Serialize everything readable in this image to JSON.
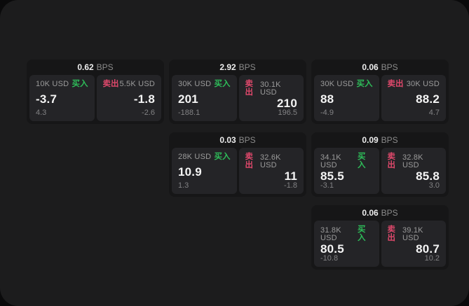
{
  "colors": {
    "buy": "#2ebd59",
    "sell": "#de486b",
    "panel_bg": "#1c1c1d",
    "card_bg": "#161617",
    "cell_bg": "#242427"
  },
  "labels": {
    "bps_unit": "BPS",
    "buy": "买入",
    "sell": "卖出"
  },
  "cards": [
    {
      "col": 1,
      "row": 1,
      "bps": "0.62",
      "buy": {
        "size": "10K USD",
        "value": "-3.7",
        "delta": "4.3"
      },
      "sell": {
        "size": "5.5K USD",
        "value": "-1.8",
        "delta": "-2.6"
      }
    },
    {
      "col": 2,
      "row": 1,
      "bps": "2.92",
      "buy": {
        "size": "30K USD",
        "value": "201",
        "delta": "-188.1"
      },
      "sell": {
        "size": "30.1K USD",
        "value": "210",
        "delta": "196.5"
      }
    },
    {
      "col": 3,
      "row": 1,
      "bps": "0.06",
      "buy": {
        "size": "30K USD",
        "value": "88",
        "delta": "-4.9"
      },
      "sell": {
        "size": "30K USD",
        "value": "88.2",
        "delta": "4.7"
      }
    },
    {
      "col": 2,
      "row": 2,
      "bps": "0.03",
      "buy": {
        "size": "28K USD",
        "value": "10.9",
        "delta": "1.3"
      },
      "sell": {
        "size": "32.6K USD",
        "value": "11",
        "delta": "-1.8"
      }
    },
    {
      "col": 3,
      "row": 2,
      "bps": "0.09",
      "buy": {
        "size": "34.1K USD",
        "value": "85.5",
        "delta": "-3.1"
      },
      "sell": {
        "size": "32.8K USD",
        "value": "85.8",
        "delta": "3.0"
      }
    },
    {
      "col": 3,
      "row": 3,
      "bps": "0.06",
      "buy": {
        "size": "31.8K USD",
        "value": "80.5",
        "delta": "-10.8"
      },
      "sell": {
        "size": "39.1K USD",
        "value": "80.7",
        "delta": "10.2"
      }
    }
  ]
}
